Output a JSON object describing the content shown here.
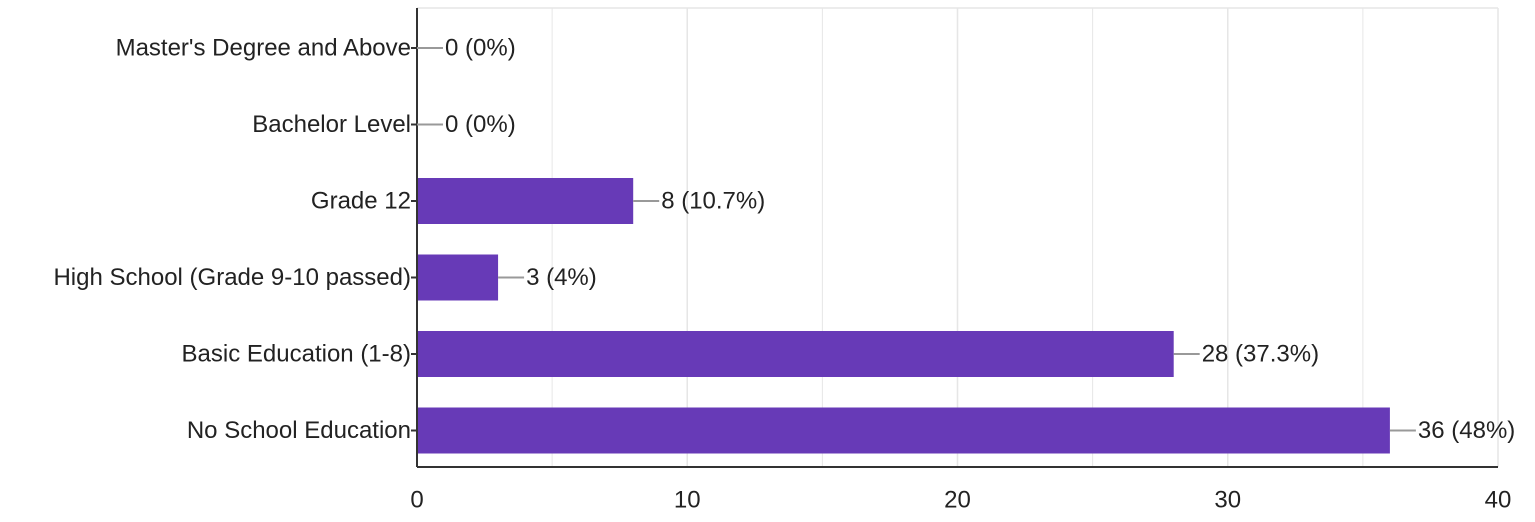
{
  "chart_data": {
    "type": "bar",
    "orientation": "horizontal",
    "categories": [
      "Master's Degree and Above",
      "Bachelor Level",
      "Grade 12",
      "High School (Grade 9-10 passed)",
      "Basic Education (1-8)",
      "No School Education"
    ],
    "values": [
      0,
      0,
      8,
      3,
      28,
      36
    ],
    "data_labels": [
      "0 (0%)",
      "0 (0%)",
      "8 (10.7%)",
      "3 (4%)",
      "28 (37.3%)",
      "36 (48%)"
    ],
    "title": "",
    "xlabel": "",
    "ylabel": "",
    "xlim": [
      0,
      40
    ],
    "xticks": [
      "0",
      "10",
      "20",
      "30",
      "40"
    ],
    "grid": true,
    "legend": "none",
    "colors": {
      "bar": "#673ab7",
      "gridline": "#e6e6e6",
      "axis": "#333333",
      "leader": "#999999"
    }
  }
}
